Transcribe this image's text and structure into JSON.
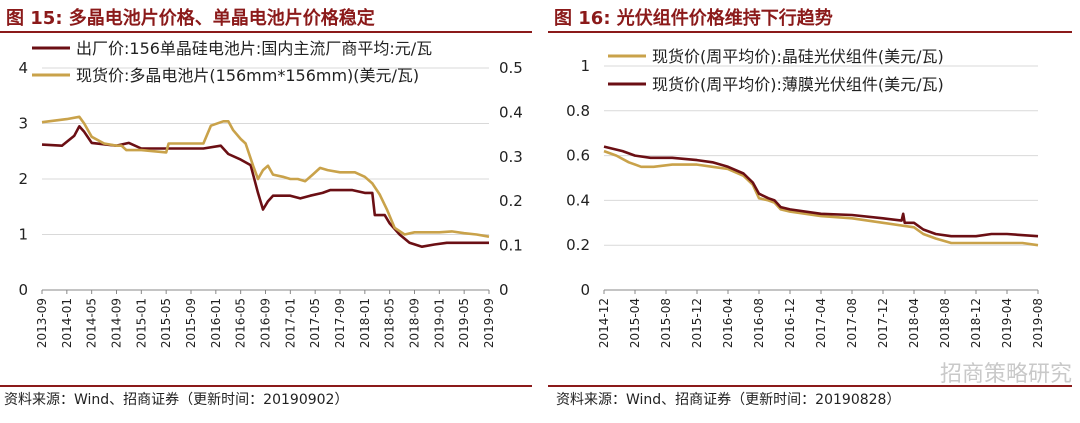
{
  "left": {
    "title": "图 15: 多晶电池片价格、单晶电池片价格稳定",
    "source": "资料来源：Wind、招商证券（更新时间：20190902）"
  },
  "right": {
    "title": "图 16: 光伏组件价格维持下行趋势",
    "source": "资料来源：Wind、招商证券（更新时间：20190828）"
  },
  "watermark": "招商策略研究",
  "colors": {
    "dark": "#6B0F14",
    "gold": "#C9A24A",
    "title": "#8B1A1A"
  },
  "chart_data": [
    {
      "type": "line",
      "x_ticks": [
        "2013-09",
        "2014-01",
        "2014-05",
        "2014-09",
        "2015-01",
        "2015-05",
        "2015-09",
        "2016-01",
        "2016-05",
        "2016-09",
        "2017-01",
        "2017-05",
        "2017-09",
        "2018-01",
        "2018-05",
        "2018-09",
        "2019-01",
        "2019-05",
        "2019-09"
      ],
      "ylim": [
        0,
        4
      ],
      "y_ticks": [
        "0",
        "1",
        "2",
        "3",
        "4"
      ],
      "y2lim": [
        0,
        0.5
      ],
      "y2_ticks": [
        "0",
        "0.1",
        "0.2",
        "0.3",
        "0.4",
        "0.5"
      ],
      "series": [
        {
          "name": "出厂价:156单晶硅电池片:国内主流厂商平均:元/瓦",
          "axis": "left",
          "color": "#6B0F14",
          "points": [
            [
              0,
              2.62
            ],
            [
              0.8,
              2.6
            ],
            [
              1.3,
              2.78
            ],
            [
              1.5,
              2.95
            ],
            [
              1.7,
              2.85
            ],
            [
              2,
              2.65
            ],
            [
              3,
              2.6
            ],
            [
              3.5,
              2.65
            ],
            [
              4,
              2.55
            ],
            [
              6,
              2.55
            ],
            [
              6.5,
              2.55
            ],
            [
              7.2,
              2.6
            ],
            [
              7.5,
              2.45
            ],
            [
              8,
              2.35
            ],
            [
              8.4,
              2.25
            ],
            [
              8.7,
              1.75
            ],
            [
              8.9,
              1.45
            ],
            [
              9.1,
              1.6
            ],
            [
              9.3,
              1.7
            ],
            [
              10,
              1.7
            ],
            [
              10.4,
              1.65
            ],
            [
              10.8,
              1.7
            ],
            [
              11.3,
              1.75
            ],
            [
              11.6,
              1.8
            ],
            [
              12.5,
              1.8
            ],
            [
              13,
              1.75
            ],
            [
              13.3,
              1.75
            ],
            [
              13.4,
              1.35
            ],
            [
              13.8,
              1.35
            ],
            [
              14,
              1.2
            ],
            [
              14.4,
              1.0
            ],
            [
              14.8,
              0.85
            ],
            [
              15.3,
              0.78
            ],
            [
              15.8,
              0.82
            ],
            [
              16.3,
              0.85
            ],
            [
              18,
              0.85
            ]
          ]
        },
        {
          "name": "现货价:多晶电池片(156mm*156mm)(美元/瓦)",
          "axis": "right",
          "color": "#C9A24A",
          "points": [
            [
              0,
              0.378
            ],
            [
              1,
              0.385
            ],
            [
              1.5,
              0.39
            ],
            [
              1.7,
              0.375
            ],
            [
              2,
              0.345
            ],
            [
              2.5,
              0.33
            ],
            [
              3,
              0.325
            ],
            [
              3.2,
              0.325
            ],
            [
              3.4,
              0.315
            ],
            [
              4,
              0.315
            ],
            [
              5,
              0.31
            ],
            [
              5.1,
              0.33
            ],
            [
              5.4,
              0.33
            ],
            [
              6.2,
              0.33
            ],
            [
              6.5,
              0.33
            ],
            [
              6.8,
              0.37
            ],
            [
              7.3,
              0.38
            ],
            [
              7.5,
              0.38
            ],
            [
              7.7,
              0.36
            ],
            [
              8,
              0.34
            ],
            [
              8.2,
              0.33
            ],
            [
              8.5,
              0.28
            ],
            [
              8.7,
              0.25
            ],
            [
              8.9,
              0.27
            ],
            [
              9.1,
              0.28
            ],
            [
              9.3,
              0.26
            ],
            [
              9.7,
              0.255
            ],
            [
              10,
              0.25
            ],
            [
              10.3,
              0.25
            ],
            [
              10.6,
              0.245
            ],
            [
              10.9,
              0.26
            ],
            [
              11.2,
              0.275
            ],
            [
              11.5,
              0.27
            ],
            [
              12,
              0.265
            ],
            [
              12.6,
              0.265
            ],
            [
              13,
              0.255
            ],
            [
              13.3,
              0.24
            ],
            [
              13.6,
              0.215
            ],
            [
              13.9,
              0.18
            ],
            [
              14.2,
              0.14
            ],
            [
              14.6,
              0.125
            ],
            [
              15,
              0.13
            ],
            [
              15.5,
              0.13
            ],
            [
              16,
              0.13
            ],
            [
              16.5,
              0.132
            ],
            [
              17,
              0.128
            ],
            [
              17.5,
              0.125
            ],
            [
              18,
              0.12
            ]
          ]
        }
      ]
    },
    {
      "type": "line",
      "x_ticks": [
        "2014-12",
        "2015-04",
        "2015-08",
        "2015-12",
        "2016-04",
        "2016-08",
        "2016-12",
        "2017-04",
        "2017-08",
        "2017-12",
        "2018-04",
        "2018-08",
        "2018-12",
        "2019-04",
        "2019-08"
      ],
      "ylim": [
        0,
        1
      ],
      "y_ticks": [
        "0",
        "0.2",
        "0.4",
        "0.6",
        "0.8",
        "1"
      ],
      "series": [
        {
          "name": "现货价(周平均价):晶硅光伏组件(美元/瓦)",
          "color": "#C9A24A",
          "points": [
            [
              0,
              0.62
            ],
            [
              0.4,
              0.6
            ],
            [
              0.8,
              0.57
            ],
            [
              1.2,
              0.55
            ],
            [
              1.6,
              0.55
            ],
            [
              2.2,
              0.56
            ],
            [
              3,
              0.56
            ],
            [
              3.5,
              0.55
            ],
            [
              4,
              0.54
            ],
            [
              4.5,
              0.51
            ],
            [
              4.8,
              0.47
            ],
            [
              5,
              0.41
            ],
            [
              5.3,
              0.4
            ],
            [
              5.5,
              0.39
            ],
            [
              5.7,
              0.36
            ],
            [
              6,
              0.35
            ],
            [
              7,
              0.33
            ],
            [
              8,
              0.32
            ],
            [
              9,
              0.3
            ],
            [
              10,
              0.28
            ],
            [
              10.3,
              0.25
            ],
            [
              10.7,
              0.23
            ],
            [
              11.2,
              0.21
            ],
            [
              12,
              0.21
            ],
            [
              13,
              0.21
            ],
            [
              13.5,
              0.21
            ],
            [
              14,
              0.2
            ]
          ]
        },
        {
          "name": "现货价(周平均价):薄膜光伏组件(美元/瓦)",
          "color": "#6B0F14",
          "points": [
            [
              0,
              0.64
            ],
            [
              0.6,
              0.62
            ],
            [
              1,
              0.6
            ],
            [
              1.5,
              0.59
            ],
            [
              2.2,
              0.59
            ],
            [
              3,
              0.58
            ],
            [
              3.5,
              0.57
            ],
            [
              4,
              0.55
            ],
            [
              4.5,
              0.52
            ],
            [
              4.8,
              0.48
            ],
            [
              5,
              0.43
            ],
            [
              5.3,
              0.41
            ],
            [
              5.5,
              0.4
            ],
            [
              5.7,
              0.37
            ],
            [
              6,
              0.36
            ],
            [
              7,
              0.34
            ],
            [
              8,
              0.335
            ],
            [
              9,
              0.32
            ],
            [
              9.6,
              0.31
            ],
            [
              9.65,
              0.34
            ],
            [
              9.7,
              0.3
            ],
            [
              10,
              0.3
            ],
            [
              10.3,
              0.27
            ],
            [
              10.7,
              0.25
            ],
            [
              11.2,
              0.24
            ],
            [
              12,
              0.24
            ],
            [
              12.5,
              0.25
            ],
            [
              13,
              0.25
            ],
            [
              14,
              0.24
            ]
          ]
        }
      ]
    }
  ]
}
